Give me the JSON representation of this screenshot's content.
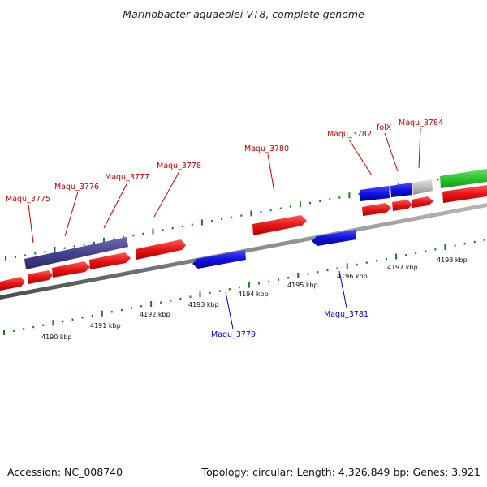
{
  "title": "Marinobacter aquaeolei VT8, complete genome",
  "footer": {
    "accession": "Accession: NC_008740",
    "topology": "Topology: circular; Length: 4,326,849 bp; Genes: 3,921"
  },
  "scale_labels": [
    "4190 kbp",
    "4191 kbp",
    "4192 kbp",
    "4193 kbp",
    "4194 kbp",
    "4195 kbp",
    "4196 kbp",
    "4197 kbp",
    "4198 kbp"
  ],
  "gene_labels_forward": [
    "Maqu_3775",
    "Maqu_3776",
    "Maqu_3777",
    "Maqu_3778",
    "Maqu_3780",
    "Maqu_3782",
    "folX",
    "Maqu_3784"
  ],
  "gene_labels_reverse": [
    "Maqu_3779",
    "Maqu_3781"
  ],
  "colors": {
    "forward_gene": "#ee1c1c",
    "reverse_gene": "#1414e6",
    "highlight_gene": "#4a4595",
    "green_gene": "#33cc33",
    "grey_gene": "#c0c0c0",
    "backbone": "#8a8a8a",
    "ticks": "#1f7a1f",
    "forward_label": "#cc0000",
    "reverse_label": "#0000cc"
  }
}
